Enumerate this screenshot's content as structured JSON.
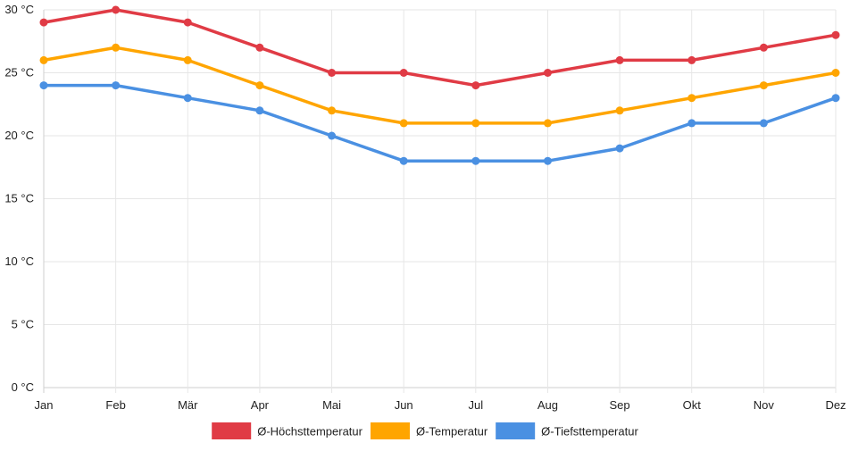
{
  "chart_data": {
    "type": "line",
    "title": "",
    "xlabel": "",
    "ylabel": "",
    "categories": [
      "Jan",
      "Feb",
      "Mär",
      "Apr",
      "Mai",
      "Jun",
      "Jul",
      "Aug",
      "Sep",
      "Okt",
      "Nov",
      "Dez"
    ],
    "ylim": [
      0,
      30
    ],
    "yticks": [
      0,
      5,
      10,
      15,
      20,
      25,
      30
    ],
    "ytick_labels": [
      "0 °C",
      "5 °C",
      "10 °C",
      "15 °C",
      "20 °C",
      "25 °C",
      "30 °C"
    ],
    "grid": true,
    "legend_position": "bottom-center",
    "series": [
      {
        "name": "Ø-Höchsttemperatur",
        "color": "#e03b45",
        "values": [
          29,
          30,
          29,
          27,
          25,
          25,
          24,
          25,
          26,
          26,
          27,
          28
        ]
      },
      {
        "name": "Ø-Temperatur",
        "color": "#ffa500",
        "values": [
          26,
          27,
          26,
          24,
          22,
          21,
          21,
          21,
          22,
          23,
          24,
          25
        ]
      },
      {
        "name": "Ø-Tiefsttemperatur",
        "color": "#4a90e2",
        "values": [
          24,
          24,
          23,
          22,
          20,
          18,
          18,
          18,
          19,
          21,
          21,
          23
        ]
      }
    ]
  }
}
